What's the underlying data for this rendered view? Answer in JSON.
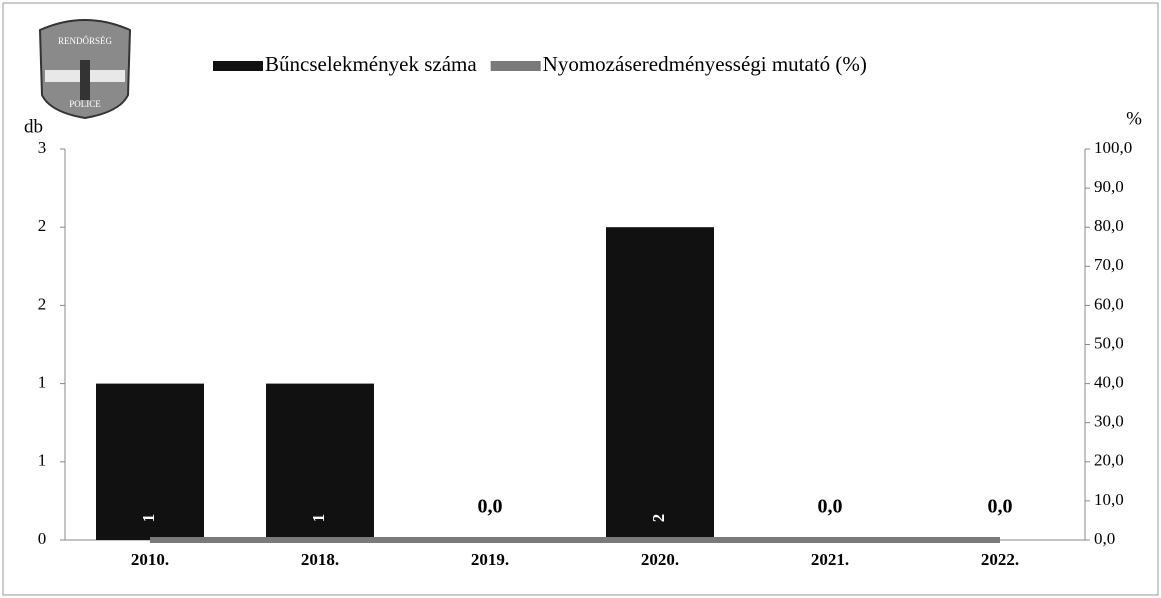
{
  "logo": {
    "top": "RENDŐRSÉG",
    "bottom": "POLICE"
  },
  "chart_data": {
    "type": "bar-line",
    "legend_position": "top",
    "y_label": "db",
    "y2_label": "%",
    "categories": [
      "2010.",
      "2018.",
      "2019.",
      "2020.",
      "2021.",
      "2022."
    ],
    "series": [
      {
        "name": "Bűncselekmények száma",
        "type": "bar",
        "color": "#111111",
        "axis": "y",
        "values": [
          1,
          1,
          0,
          2,
          0,
          0
        ],
        "value_labels": [
          "1",
          "1",
          null,
          "2",
          null,
          null
        ]
      },
      {
        "name": "Nyomozáseredményességi mutató (%)",
        "type": "line",
        "color": "#7a7a7a",
        "axis": "y2",
        "values": [
          0,
          0,
          0,
          0,
          0,
          0
        ],
        "value_labels": [
          null,
          null,
          "0,0",
          null,
          "0,0",
          "0,0"
        ]
      }
    ],
    "ylim": [
      0,
      2.5
    ],
    "yticks": [
      0,
      {
        "value": 0.5,
        "label": "1"
      },
      1,
      {
        "value": 1.5,
        "label": "2"
      },
      2,
      {
        "value": 2.5,
        "label": "3"
      }
    ],
    "y2lim": [
      0,
      100
    ],
    "y2ticks": [
      {
        "value": 0,
        "label": "0,0"
      },
      {
        "value": 10,
        "label": "10,0"
      },
      {
        "value": 20,
        "label": "20,0"
      },
      {
        "value": 30,
        "label": "30,0"
      },
      {
        "value": 40,
        "label": "40,0"
      },
      {
        "value": 50,
        "label": "50,0"
      },
      {
        "value": 60,
        "label": "60,0"
      },
      {
        "value": 70,
        "label": "70,0"
      },
      {
        "value": 80,
        "label": "80,0"
      },
      {
        "value": 90,
        "label": "90,0"
      },
      {
        "value": 100,
        "label": "100,0"
      }
    ]
  }
}
